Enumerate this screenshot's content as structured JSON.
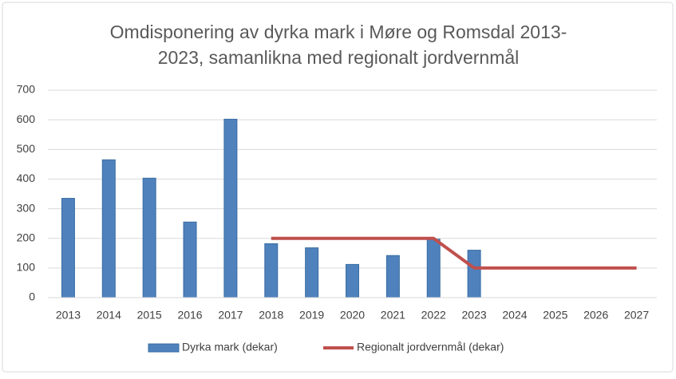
{
  "chart_data": {
    "type": "combo",
    "title": [
      "Omdisponering av dyrka mark i Møre og Romsdal 2013-",
      "2023, samanlikna med regionalt jordvernmål"
    ],
    "categories": [
      "2013",
      "2014",
      "2015",
      "2016",
      "2017",
      "2018",
      "2019",
      "2020",
      "2021",
      "2022",
      "2023",
      "2024",
      "2025",
      "2026",
      "2027"
    ],
    "series": [
      {
        "name": "Dyrka mark (dekar)",
        "type": "bar",
        "color": "#4f81bd",
        "values": [
          335,
          465,
          403,
          255,
          602,
          182,
          168,
          112,
          142,
          197,
          160,
          null,
          null,
          null,
          null
        ]
      },
      {
        "name": "Regionalt jordvernmål (dekar)",
        "type": "line",
        "color": "#c0504d",
        "values": [
          null,
          null,
          null,
          null,
          null,
          200,
          200,
          200,
          200,
          200,
          100,
          100,
          100,
          100,
          100
        ]
      }
    ],
    "ylim": [
      0,
      700
    ],
    "yticks": [
      0,
      100,
      200,
      300,
      400,
      500,
      600,
      700
    ],
    "grid": true,
    "legend": "bottom"
  }
}
